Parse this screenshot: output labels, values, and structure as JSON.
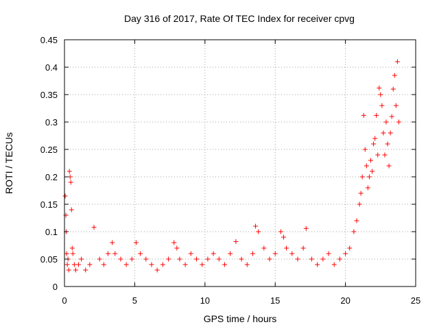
{
  "chart_data": {
    "type": "scatter",
    "title": "Day 316 of 2017, Rate Of TEC Index for receiver cpvg",
    "xlabel": "GPS time / hours",
    "ylabel": "ROTI / TECUs",
    "xlim": [
      0,
      25
    ],
    "ylim": [
      0,
      0.45
    ],
    "xticks": [
      0,
      5,
      10,
      15,
      20,
      25
    ],
    "yticks": [
      0,
      0.05,
      0.1,
      0.15,
      0.2,
      0.25,
      0.3,
      0.35,
      0.4,
      0.45
    ],
    "xtick_labels": [
      "0",
      "5",
      "10",
      "15",
      "20",
      "25"
    ],
    "ytick_labels": [
      "0",
      "0.05",
      "0.1",
      "0.15",
      "0.2",
      "0.25",
      "0.3",
      "0.35",
      "0.4",
      "0.45"
    ],
    "grid": true,
    "marker": "+",
    "color": "#ff0000",
    "series": [
      {
        "x": [
          0.05,
          0.1,
          0.12,
          0.15,
          0.2,
          0.25,
          0.3,
          0.35,
          0.4,
          0.45,
          0.5,
          0.55,
          0.6,
          0.7,
          0.8,
          1.0,
          1.2,
          1.5,
          1.8,
          2.1,
          2.5,
          2.8,
          3.1,
          3.4,
          3.6,
          4.0,
          4.4,
          4.8,
          5.1,
          5.4,
          5.8,
          6.2,
          6.6,
          7.0,
          7.4,
          7.8,
          8.0,
          8.2,
          8.6,
          9.0,
          9.4,
          9.8,
          10.2,
          10.6,
          11.0,
          11.4,
          11.8,
          12.2,
          12.6,
          13.0,
          13.4,
          13.6,
          13.8,
          14.2,
          14.6,
          15.0,
          15.4,
          15.6,
          15.8,
          16.2,
          16.6,
          17.0,
          17.2,
          17.6,
          18.0,
          18.4,
          18.8,
          19.2,
          19.6,
          20.0,
          20.3,
          20.6,
          20.8,
          21.0,
          21.1,
          21.2,
          21.3,
          21.4,
          21.5,
          21.6,
          21.7,
          21.8,
          21.9,
          22.0,
          22.1,
          22.2,
          22.3,
          22.4,
          22.5,
          22.6,
          22.7,
          22.8,
          22.9,
          23.0,
          23.1,
          23.2,
          23.3,
          23.4,
          23.5,
          23.6,
          23.7,
          23.8
        ],
        "y": [
          0.165,
          0.13,
          0.1,
          0.06,
          0.04,
          0.05,
          0.03,
          0.21,
          0.2,
          0.19,
          0.14,
          0.07,
          0.06,
          0.04,
          0.03,
          0.04,
          0.05,
          0.03,
          0.04,
          0.108,
          0.05,
          0.04,
          0.06,
          0.08,
          0.06,
          0.05,
          0.04,
          0.05,
          0.08,
          0.06,
          0.05,
          0.04,
          0.03,
          0.04,
          0.05,
          0.08,
          0.07,
          0.05,
          0.04,
          0.06,
          0.05,
          0.04,
          0.05,
          0.06,
          0.05,
          0.04,
          0.06,
          0.082,
          0.05,
          0.04,
          0.06,
          0.11,
          0.1,
          0.07,
          0.05,
          0.06,
          0.1,
          0.09,
          0.07,
          0.06,
          0.05,
          0.07,
          0.106,
          0.05,
          0.04,
          0.05,
          0.06,
          0.04,
          0.05,
          0.06,
          0.07,
          0.1,
          0.12,
          0.15,
          0.17,
          0.2,
          0.312,
          0.25,
          0.22,
          0.18,
          0.2,
          0.23,
          0.21,
          0.26,
          0.27,
          0.312,
          0.24,
          0.362,
          0.35,
          0.33,
          0.28,
          0.24,
          0.3,
          0.26,
          0.22,
          0.28,
          0.31,
          0.36,
          0.385,
          0.33,
          0.41,
          0.3
        ]
      }
    ]
  }
}
